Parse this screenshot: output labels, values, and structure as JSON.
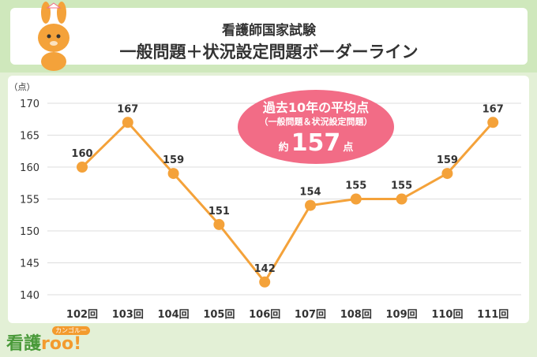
{
  "header": {
    "line1": "看護師国家試験",
    "line2": "一般問題＋状況設定問題ボーダーライン"
  },
  "badge": {
    "line1": "過去10年の平均点",
    "line2": "（一般問題＆状況設定問題）",
    "prefix": "約",
    "value": "157",
    "suffix": "点"
  },
  "brand": {
    "name": "看護",
    "roo": "roo!",
    "sub": "カンゴルー"
  },
  "colors": {
    "line": "#f4a23a",
    "badge": "#f26c86",
    "header_band": "#cfe8bc",
    "background": "#e3f0d6"
  },
  "chart_data": {
    "type": "line",
    "title": "看護師国家試験 一般問題＋状況設定問題ボーダーライン",
    "ylabel": "（点）",
    "xlabel": "",
    "categories": [
      "102回",
      "103回",
      "104回",
      "105回",
      "106回",
      "107回",
      "108回",
      "109回",
      "110回",
      "111回"
    ],
    "values": [
      160,
      167,
      159,
      151,
      142,
      154,
      155,
      155,
      159,
      167
    ],
    "data_labels": [
      "160",
      "167",
      "159",
      "151",
      "142",
      "154",
      "155",
      "155",
      "159",
      "167"
    ],
    "ylim": [
      140,
      170
    ],
    "yticks": [
      "140",
      "145",
      "150",
      "155",
      "160",
      "165",
      "170"
    ],
    "grid": true
  }
}
